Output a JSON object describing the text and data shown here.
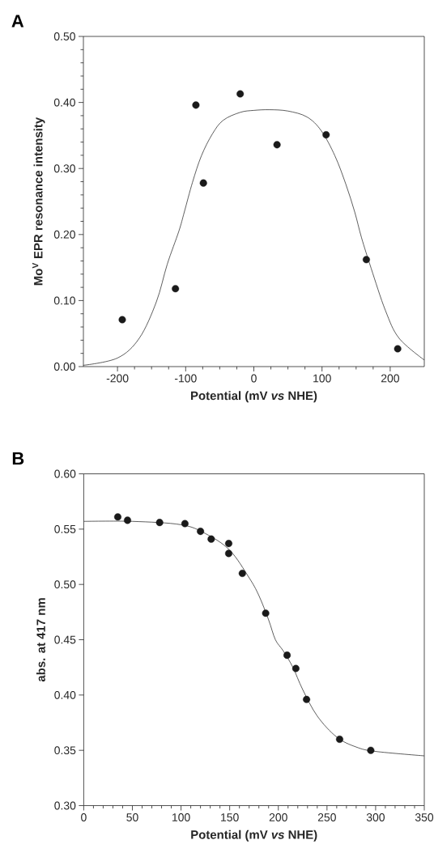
{
  "chart_data": [
    {
      "type": "scatter",
      "title": "A",
      "xlabel": "Potential (mV *vs* NHE)",
      "ylabel": "Mo$^{V}$ EPR resonance intensity",
      "xlim": [
        -250,
        250
      ],
      "ylim": [
        0,
        0.5
      ],
      "xticks": [
        -200,
        -100,
        0,
        100,
        200
      ],
      "yticks": [
        {
          "value": 0,
          "label": "0.00"
        },
        {
          "value": 0.1,
          "label": "0.10"
        },
        {
          "value": 0.2,
          "label": "0.20"
        },
        {
          "value": 0.3,
          "label": "0.30"
        },
        {
          "value": 0.4,
          "label": "0.40"
        },
        {
          "value": 0.5,
          "label": "0.50"
        }
      ],
      "series": [
        {
          "marker": "circle",
          "color": "#1a1a1a",
          "x": [
            -193,
            -115,
            -85,
            -74,
            -20,
            34,
            106,
            165,
            211
          ],
          "values": [
            0.071,
            0.118,
            0.396,
            0.278,
            0.413,
            0.336,
            0.351,
            0.162,
            0.027
          ]
        },
        {
          "type": "line",
          "color": "#1a1a1a",
          "x": [
            -250,
            -200,
            -168,
            -143,
            -127,
            -110,
            -102,
            -90,
            -77,
            -61,
            -45,
            -20,
            0,
            23,
            50,
            78,
            99,
            119,
            135,
            148,
            158,
            172,
            193,
            213,
            250
          ],
          "values": [
            0.002,
            0.013,
            0.043,
            0.098,
            0.155,
            0.205,
            0.234,
            0.279,
            0.319,
            0.352,
            0.373,
            0.385,
            0.388,
            0.389,
            0.387,
            0.378,
            0.357,
            0.319,
            0.276,
            0.234,
            0.195,
            0.149,
            0.085,
            0.043,
            0.01
          ]
        }
      ]
    },
    {
      "type": "scatter",
      "title": "B",
      "xlabel": "Potential (mV *vs* NHE)",
      "ylabel": "abs. at 417 nm",
      "xlim": [
        0,
        350
      ],
      "ylim": [
        0.3,
        0.6
      ],
      "xticks": [
        0,
        50,
        100,
        150,
        200,
        250,
        300,
        350
      ],
      "yticks": [
        {
          "value": 0.3,
          "label": "0.30"
        },
        {
          "value": 0.35,
          "label": "0.35"
        },
        {
          "value": 0.4,
          "label": "0.40"
        },
        {
          "value": 0.45,
          "label": "0.45"
        },
        {
          "value": 0.5,
          "label": "0.50"
        },
        {
          "value": 0.55,
          "label": "0.55"
        },
        {
          "value": 0.6,
          "label": "0.60"
        }
      ],
      "series": [
        {
          "marker": "circle",
          "color": "#1a1a1a",
          "x": [
            35,
            45,
            78,
            104,
            120,
            131,
            149,
            149,
            163,
            187,
            209,
            218,
            229,
            263,
            295
          ],
          "values": [
            0.561,
            0.558,
            0.556,
            0.555,
            0.548,
            0.541,
            0.537,
            0.528,
            0.51,
            0.474,
            0.436,
            0.424,
            0.396,
            0.36,
            0.35
          ]
        },
        {
          "type": "line",
          "color": "#1a1a1a",
          "x": [
            0,
            50,
            100,
            125,
            150,
            170,
            180,
            190,
            197,
            205,
            215,
            225,
            240,
            260,
            280,
            300,
            350
          ],
          "values": [
            0.557,
            0.557,
            0.554,
            0.546,
            0.531,
            0.506,
            0.49,
            0.468,
            0.45,
            0.44,
            0.425,
            0.405,
            0.381,
            0.362,
            0.353,
            0.349,
            0.345
          ]
        }
      ]
    }
  ]
}
